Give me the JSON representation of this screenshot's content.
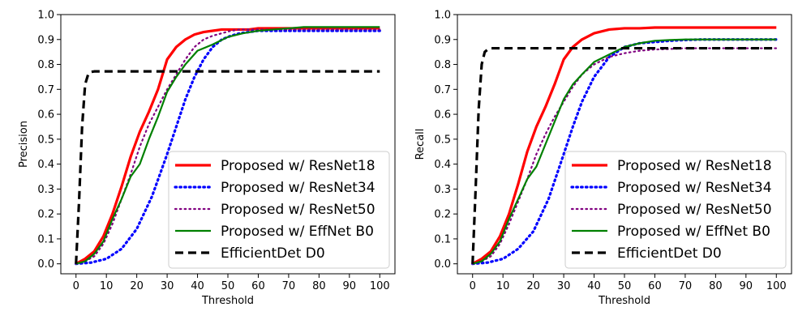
{
  "chart_data": [
    {
      "type": "line",
      "title": "",
      "xlabel": "Threshold",
      "ylabel": "Precision",
      "xlim": [
        -5,
        105
      ],
      "ylim": [
        -0.04,
        1.0
      ],
      "xticks": [
        "0",
        "10",
        "20",
        "30",
        "40",
        "50",
        "60",
        "70",
        "80",
        "90",
        "100"
      ],
      "yticks": [
        "0.0",
        "0.1",
        "0.2",
        "0.3",
        "0.4",
        "0.5",
        "0.6",
        "0.7",
        "0.8",
        "0.9",
        "1.0"
      ],
      "grid": false,
      "legend_position": "lower-right",
      "series": [
        {
          "name": "Proposed w/ ResNet18",
          "color": "#ff0000",
          "style": "solid",
          "width": 3.2,
          "x": [
            0,
            3,
            6,
            9,
            12,
            15,
            18,
            21,
            24,
            27,
            30,
            33,
            36,
            39,
            42,
            45,
            48,
            51,
            54,
            57,
            60,
            63,
            66,
            69,
            72,
            75,
            78,
            81,
            84,
            87,
            90,
            93,
            96,
            100
          ],
          "y": [
            0.0,
            0.02,
            0.05,
            0.11,
            0.2,
            0.31,
            0.43,
            0.53,
            0.61,
            0.7,
            0.82,
            0.87,
            0.9,
            0.92,
            0.93,
            0.935,
            0.94,
            0.94,
            0.94,
            0.94,
            0.945,
            0.945,
            0.945,
            0.945,
            0.945,
            0.945,
            0.945,
            0.945,
            0.945,
            0.945,
            0.945,
            0.945,
            0.945,
            0.945
          ]
        },
        {
          "name": "Proposed w/ ResNet34",
          "color": "#0000ff",
          "style": "dotted",
          "width": 3.2,
          "x": [
            0,
            5,
            10,
            15,
            20,
            25,
            30,
            33,
            36,
            39,
            42,
            45,
            48,
            51,
            54,
            57,
            60,
            65,
            70,
            75,
            80,
            85,
            90,
            95,
            100
          ],
          "y": [
            0.0,
            0.005,
            0.02,
            0.06,
            0.14,
            0.27,
            0.44,
            0.55,
            0.66,
            0.75,
            0.82,
            0.87,
            0.9,
            0.915,
            0.925,
            0.93,
            0.935,
            0.935,
            0.935,
            0.935,
            0.935,
            0.935,
            0.935,
            0.935,
            0.935
          ]
        },
        {
          "name": "Proposed w/ ResNet50",
          "color": "#800080",
          "style": "dotted",
          "width": 2.2,
          "x": [
            0,
            3,
            6,
            9,
            12,
            15,
            18,
            21,
            24,
            27,
            30,
            33,
            36,
            39,
            42,
            45,
            48,
            51,
            54,
            60,
            65,
            70,
            75,
            80,
            85,
            90,
            95,
            100
          ],
          "y": [
            0.0,
            0.01,
            0.03,
            0.08,
            0.16,
            0.26,
            0.36,
            0.47,
            0.56,
            0.63,
            0.7,
            0.76,
            0.82,
            0.87,
            0.9,
            0.915,
            0.925,
            0.935,
            0.94,
            0.94,
            0.94,
            0.94,
            0.94,
            0.94,
            0.94,
            0.94,
            0.94,
            0.94
          ]
        },
        {
          "name": "Proposed w/ EffNet B0",
          "color": "#008000",
          "style": "solid",
          "width": 2.2,
          "x": [
            0,
            3,
            6,
            9,
            12,
            15,
            18,
            21,
            24,
            27,
            30,
            33,
            36,
            40,
            45,
            50,
            55,
            60,
            65,
            70,
            75,
            80,
            85,
            90,
            95,
            100
          ],
          "y": [
            0.0,
            0.01,
            0.04,
            0.09,
            0.18,
            0.26,
            0.35,
            0.4,
            0.5,
            0.59,
            0.69,
            0.75,
            0.8,
            0.855,
            0.88,
            0.91,
            0.925,
            0.935,
            0.94,
            0.945,
            0.95,
            0.95,
            0.95,
            0.95,
            0.95,
            0.95
          ]
        },
        {
          "name": "EfficientDet D0",
          "color": "#000000",
          "style": "dashed",
          "width": 3.2,
          "x": [
            0,
            1,
            2,
            3,
            4,
            5,
            6,
            8,
            10,
            20,
            30,
            40,
            50,
            60,
            70,
            80,
            90,
            100
          ],
          "y": [
            0.0,
            0.25,
            0.55,
            0.72,
            0.76,
            0.77,
            0.772,
            0.772,
            0.772,
            0.772,
            0.772,
            0.772,
            0.772,
            0.772,
            0.772,
            0.772,
            0.772,
            0.772
          ]
        }
      ]
    },
    {
      "type": "line",
      "title": "",
      "xlabel": "Threshold",
      "ylabel": "Recall",
      "xlim": [
        -5,
        105
      ],
      "ylim": [
        -0.04,
        1.0
      ],
      "xticks": [
        "0",
        "10",
        "20",
        "30",
        "40",
        "50",
        "60",
        "70",
        "80",
        "90",
        "100"
      ],
      "yticks": [
        "0.0",
        "0.1",
        "0.2",
        "0.3",
        "0.4",
        "0.5",
        "0.6",
        "0.7",
        "0.8",
        "0.9",
        "1.0"
      ],
      "grid": false,
      "legend_position": "lower-right",
      "series": [
        {
          "name": "Proposed w/ ResNet18",
          "color": "#ff0000",
          "style": "solid",
          "width": 3.2,
          "x": [
            0,
            3,
            6,
            9,
            12,
            15,
            18,
            21,
            24,
            27,
            30,
            33,
            36,
            40,
            45,
            50,
            55,
            60,
            65,
            70,
            75,
            80,
            85,
            90,
            95,
            100
          ],
          "y": [
            0.0,
            0.02,
            0.05,
            0.11,
            0.2,
            0.32,
            0.45,
            0.55,
            0.63,
            0.72,
            0.82,
            0.87,
            0.9,
            0.925,
            0.94,
            0.945,
            0.945,
            0.948,
            0.948,
            0.948,
            0.948,
            0.948,
            0.948,
            0.948,
            0.948,
            0.948
          ]
        },
        {
          "name": "Proposed w/ ResNet34",
          "color": "#0000ff",
          "style": "dotted",
          "width": 3.2,
          "x": [
            0,
            5,
            10,
            15,
            20,
            25,
            30,
            33,
            36,
            40,
            45,
            50,
            55,
            60,
            65,
            70,
            75,
            80,
            85,
            90,
            95,
            100
          ],
          "y": [
            0.0,
            0.005,
            0.02,
            0.06,
            0.13,
            0.26,
            0.44,
            0.55,
            0.65,
            0.75,
            0.83,
            0.87,
            0.885,
            0.89,
            0.895,
            0.898,
            0.9,
            0.9,
            0.9,
            0.9,
            0.9,
            0.9
          ]
        },
        {
          "name": "Proposed w/ ResNet50",
          "color": "#800080",
          "style": "dotted",
          "width": 2.2,
          "x": [
            0,
            3,
            6,
            9,
            12,
            15,
            18,
            21,
            24,
            27,
            30,
            33,
            36,
            40,
            45,
            50,
            55,
            60,
            65,
            70,
            75,
            80,
            85,
            90,
            95,
            100
          ],
          "y": [
            0.0,
            0.01,
            0.03,
            0.08,
            0.16,
            0.25,
            0.34,
            0.44,
            0.52,
            0.59,
            0.65,
            0.71,
            0.76,
            0.8,
            0.83,
            0.845,
            0.855,
            0.86,
            0.862,
            0.865,
            0.865,
            0.865,
            0.865,
            0.865,
            0.865,
            0.865
          ]
        },
        {
          "name": "Proposed w/ EffNet B0",
          "color": "#008000",
          "style": "solid",
          "width": 2.2,
          "x": [
            0,
            3,
            6,
            9,
            12,
            15,
            18,
            21,
            24,
            27,
            30,
            33,
            36,
            40,
            45,
            50,
            55,
            60,
            65,
            70,
            75,
            80,
            85,
            90,
            95,
            100
          ],
          "y": [
            0.0,
            0.01,
            0.04,
            0.09,
            0.18,
            0.26,
            0.34,
            0.39,
            0.48,
            0.57,
            0.66,
            0.72,
            0.76,
            0.81,
            0.84,
            0.87,
            0.885,
            0.895,
            0.898,
            0.9,
            0.9,
            0.9,
            0.9,
            0.9,
            0.9,
            0.9
          ]
        },
        {
          "name": "EfficientDet D0",
          "color": "#000000",
          "style": "dashed",
          "width": 3.2,
          "x": [
            0,
            1,
            2,
            3,
            4,
            5,
            6,
            8,
            10,
            20,
            30,
            40,
            50,
            60,
            70,
            80,
            90,
            100
          ],
          "y": [
            0.0,
            0.3,
            0.62,
            0.8,
            0.85,
            0.86,
            0.865,
            0.865,
            0.865,
            0.865,
            0.865,
            0.865,
            0.865,
            0.865,
            0.865,
            0.865,
            0.865,
            0.865
          ]
        }
      ]
    }
  ]
}
